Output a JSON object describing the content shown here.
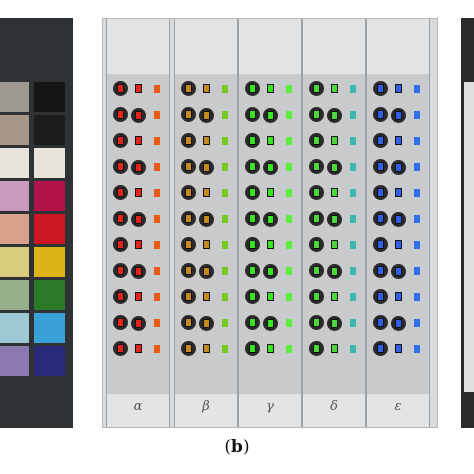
{
  "caption": {
    "open": "(",
    "letter": "b",
    "close": ")"
  },
  "strips": [
    {
      "label": "α",
      "color": "#e8241a",
      "square_color_2": "#e85a1a"
    },
    {
      "label": "β",
      "color": "#c58a1a",
      "square_color_2": "#7ac81a"
    },
    {
      "label": "γ",
      "color": "#36e81a",
      "square_color_2": "#5cf03a"
    },
    {
      "label": "δ",
      "color": "#4bd93a",
      "square_color_2": "#3cb6b0"
    },
    {
      "label": "ε",
      "color": "#2f5ff0",
      "square_color_2": "#2f6ff0"
    }
  ],
  "left_chips": [
    [
      "#9e9a92",
      "#161616"
    ],
    [
      "#a9968a",
      "#1c1c1c"
    ],
    [
      "#e8e4dc",
      "#e8e4dc"
    ],
    [
      "#c99ac0",
      "#b0124a"
    ],
    [
      "#d9a08e",
      "#cc1622"
    ],
    [
      "#d9cc7a",
      "#dcb41a"
    ],
    [
      "#98b08a",
      "#2a7a2a"
    ],
    [
      "#9ec9d4",
      "#3aa0d8"
    ],
    [
      "#8a7ab0",
      "#2a2a7a"
    ]
  ]
}
